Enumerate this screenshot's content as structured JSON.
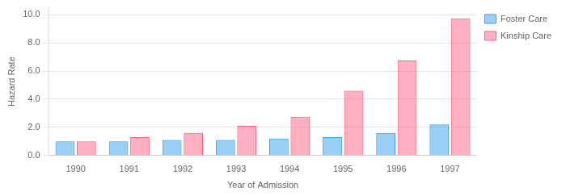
{
  "chart_data": {
    "type": "bar",
    "categories": [
      "1990",
      "1991",
      "1992",
      "1993",
      "1994",
      "1995",
      "1996",
      "1997"
    ],
    "series": [
      {
        "name": "Foster Care",
        "values": [
          1.0,
          1.0,
          1.1,
          1.1,
          1.2,
          1.3,
          1.6,
          2.2
        ]
      },
      {
        "name": "Kinship Care",
        "values": [
          1.0,
          1.3,
          1.6,
          2.1,
          2.75,
          4.6,
          6.75,
          9.75
        ]
      }
    ],
    "xlabel": "Year of Admission",
    "ylabel": "Hazard Rate",
    "ylim": [
      0,
      10.5
    ],
    "yticks": [
      {
        "value": 0,
        "label": "0.0"
      },
      {
        "value": 2,
        "label": "2.0"
      },
      {
        "value": 4,
        "label": "4.0"
      },
      {
        "value": 6,
        "label": "6.0"
      },
      {
        "value": 8,
        "label": "8.0"
      },
      {
        "value": 10,
        "label": "10.0"
      }
    ],
    "grid": true,
    "legend": "right"
  }
}
